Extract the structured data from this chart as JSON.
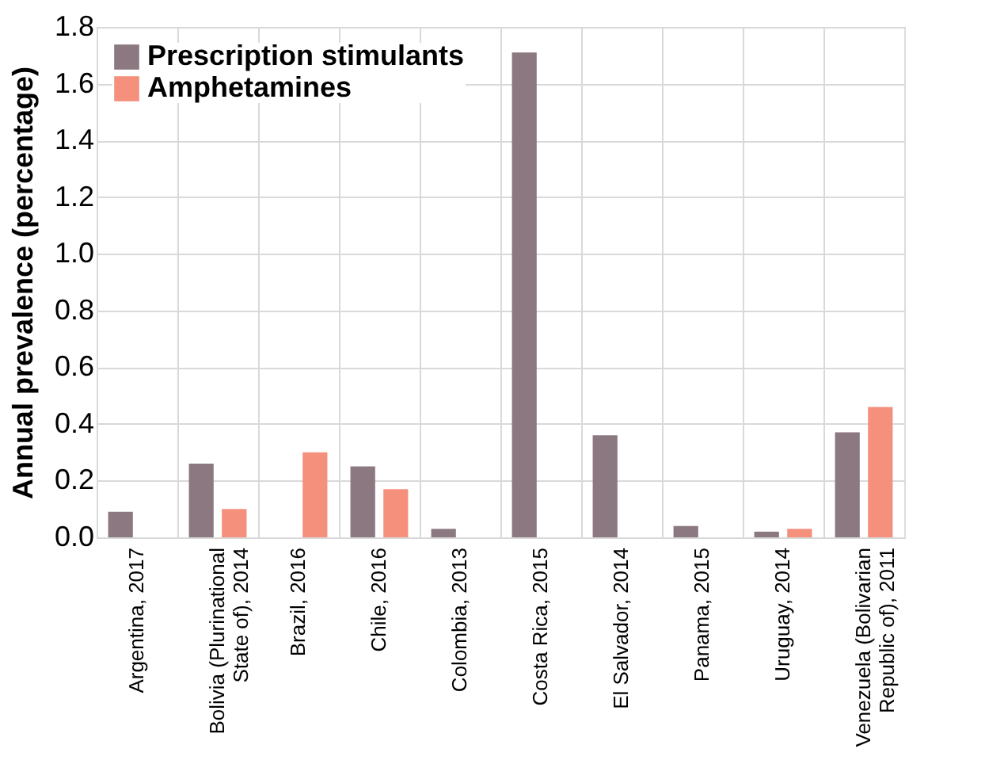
{
  "chart_data": {
    "type": "bar",
    "ylabel": "Annual prevalence (percentage)",
    "categories": [
      "Argentina, 2017",
      "Bolivia (Plurinational State of), 2014",
      "Brazil, 2016",
      "Chile, 2016",
      "Colombia, 2013",
      "Costa Rica, 2015",
      "El Salvador, 2014",
      "Panama, 2015",
      "Uruguay, 2014",
      "Venezuela (Bolivarian Republic of), 2011"
    ],
    "series": [
      {
        "name": "Prescription stimulants",
        "color": "#8b7880",
        "values": [
          0.09,
          0.26,
          null,
          0.25,
          0.03,
          1.71,
          0.36,
          0.04,
          0.02,
          0.37
        ]
      },
      {
        "name": "Amphetamines",
        "color": "#f4907c",
        "values": [
          null,
          0.1,
          0.3,
          0.17,
          null,
          null,
          null,
          null,
          0.03,
          0.46
        ]
      }
    ],
    "ylim": [
      0,
      1.8
    ],
    "yticks": [
      {
        "value": 0,
        "label": "0.0"
      },
      {
        "value": 0.2,
        "label": "0.2"
      },
      {
        "value": 0.4,
        "label": "0.4"
      },
      {
        "value": 0.6,
        "label": "0.6"
      },
      {
        "value": 0.8,
        "label": "0.8"
      },
      {
        "value": 1.0,
        "label": "1.0"
      },
      {
        "value": 1.2,
        "label": "1.2"
      },
      {
        "value": 1.4,
        "label": "1.4"
      },
      {
        "value": 1.6,
        "label": "1.6"
      },
      {
        "value": 1.8,
        "label": "1.8"
      }
    ],
    "grid": true,
    "legend": "top left"
  }
}
